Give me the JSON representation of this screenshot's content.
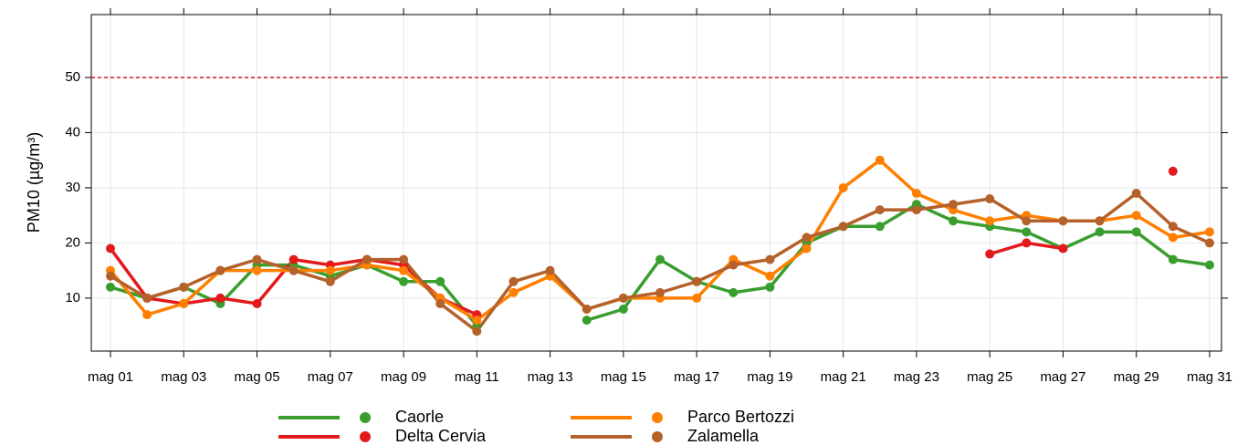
{
  "chart_data": {
    "type": "line",
    "y_label": "PM10 (µg/m³)",
    "categories": [
      "mag 01",
      null,
      "mag 03",
      null,
      "mag 05",
      null,
      "mag 07",
      null,
      "mag 09",
      null,
      "mag 11",
      null,
      "mag 13",
      null,
      "mag 15",
      null,
      "mag 17",
      null,
      "mag 19",
      null,
      "mag 21",
      null,
      "mag 23",
      null,
      "mag 25",
      null,
      "mag 27",
      null,
      "mag 29",
      null,
      "mag 31"
    ],
    "series": [
      {
        "name": "Caorle",
        "color": "#3a9e2f",
        "values": [
          12,
          10,
          12,
          9,
          16,
          16,
          14,
          16,
          13,
          13,
          5,
          null,
          null,
          6,
          8,
          17,
          13,
          11,
          12,
          20,
          23,
          23,
          27,
          24,
          23,
          22,
          19,
          22,
          22,
          17,
          16
        ]
      },
      {
        "name": "Delta Cervia",
        "color": "#e31a1c",
        "values": [
          19,
          10,
          9,
          10,
          9,
          17,
          16,
          17,
          16,
          10,
          7,
          null,
          null,
          null,
          null,
          null,
          null,
          null,
          null,
          null,
          null,
          null,
          null,
          null,
          18,
          20,
          19,
          null,
          null,
          33,
          null
        ]
      },
      {
        "name": "Parco Bertozzi",
        "color": "#ff7f00",
        "values": [
          15,
          7,
          9,
          15,
          15,
          15,
          15,
          16,
          15,
          10,
          6,
          11,
          14,
          8,
          10,
          10,
          10,
          17,
          14,
          19,
          30,
          35,
          29,
          26,
          24,
          25,
          24,
          24,
          25,
          21,
          22
        ]
      },
      {
        "name": "Zalamella",
        "color": "#b5612b",
        "values": [
          14,
          10,
          12,
          15,
          17,
          15,
          13,
          17,
          17,
          9,
          4,
          13,
          15,
          8,
          10,
          11,
          13,
          16,
          17,
          21,
          23,
          26,
          26,
          27,
          28,
          24,
          24,
          24,
          29,
          23,
          20
        ]
      }
    ],
    "ylim": [
      0.4,
      61.4
    ],
    "yticks": [
      10,
      20,
      30,
      40,
      50
    ],
    "grid": true,
    "reference_line": 50,
    "reference_color": "#d7191c"
  }
}
